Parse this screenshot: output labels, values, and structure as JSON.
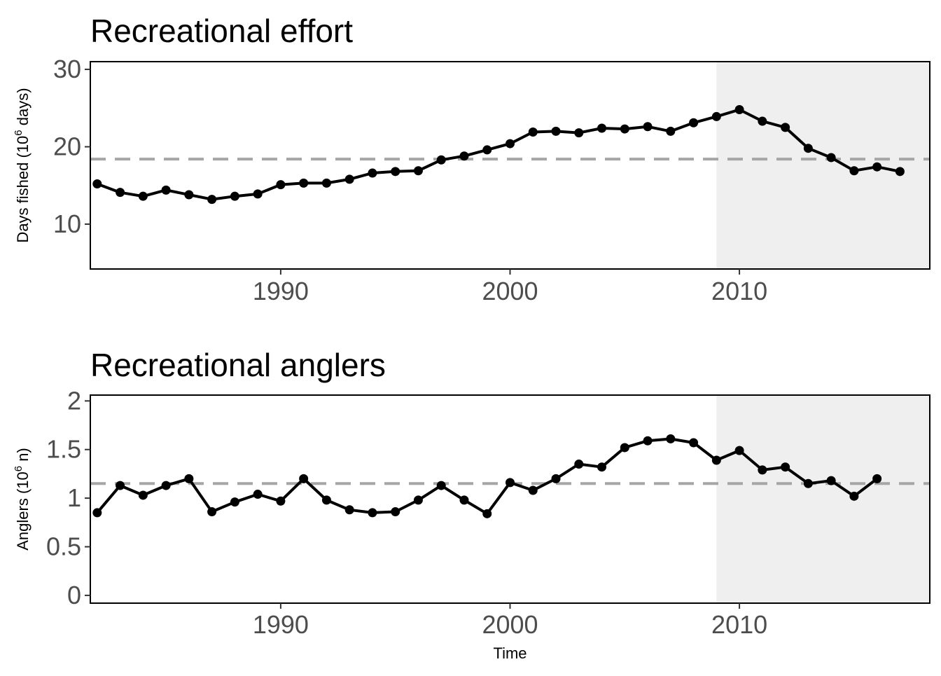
{
  "chart_data": [
    {
      "type": "line",
      "title": "Recreational effort",
      "ylabel": "Days fished (10^6 days)",
      "ylabel_parts": {
        "pre": "Days fished (10",
        "sup": "6",
        "post": " days)"
      },
      "xlabel": "",
      "xlim": [
        1981.7,
        2018.3
      ],
      "ylim": [
        4.2,
        31
      ],
      "x_ticks": [
        1990,
        2000,
        2010
      ],
      "y_ticks": [
        10,
        20,
        30
      ],
      "x_tick_labels": [
        "1990",
        "2000",
        "2010"
      ],
      "y_tick_labels": [
        "10",
        "20",
        "30"
      ],
      "shaded_region": [
        2009,
        2018.3
      ],
      "reference_line": 18.4,
      "grid": false,
      "series": [
        {
          "x": [
            1982,
            1983,
            1984,
            1985,
            1986,
            1987,
            1988,
            1989,
            1990,
            1991,
            1992,
            1993,
            1994,
            1995,
            1996,
            1997,
            1998,
            1999,
            2000,
            2001,
            2002,
            2003,
            2004,
            2005,
            2006,
            2007,
            2008,
            2009,
            2010,
            2011,
            2012,
            2013,
            2014,
            2015,
            2016,
            2017
          ],
          "values": [
            15.2,
            14.1,
            13.6,
            14.4,
            13.8,
            13.2,
            13.6,
            13.9,
            15.1,
            15.3,
            15.3,
            15.8,
            16.6,
            16.8,
            16.9,
            18.3,
            18.8,
            19.6,
            20.4,
            21.9,
            22.0,
            21.8,
            22.4,
            22.3,
            22.6,
            22.0,
            23.1,
            23.9,
            24.8,
            23.3,
            22.5,
            19.8,
            18.6,
            16.9,
            17.4,
            16.8
          ]
        }
      ]
    },
    {
      "type": "line",
      "title": "Recreational anglers",
      "ylabel": "Anglers (10^6 n)",
      "ylabel_parts": {
        "pre": "Anglers (10",
        "sup": "6",
        "post": " n)"
      },
      "xlabel": "Time",
      "xlim": [
        1981.7,
        2018.3
      ],
      "ylim": [
        -0.08,
        2.06
      ],
      "x_ticks": [
        1990,
        2000,
        2010
      ],
      "y_ticks": [
        0,
        0.5,
        1,
        1.5,
        2
      ],
      "x_tick_labels": [
        "1990",
        "2000",
        "2010"
      ],
      "y_tick_labels": [
        "0",
        "0.5",
        "1",
        "1.5",
        "2"
      ],
      "shaded_region": [
        2009,
        2018.3
      ],
      "reference_line": 1.15,
      "grid": false,
      "series": [
        {
          "x": [
            1982,
            1983,
            1984,
            1985,
            1986,
            1987,
            1988,
            1989,
            1990,
            1991,
            1992,
            1993,
            1994,
            1995,
            1996,
            1997,
            1998,
            1999,
            2000,
            2001,
            2002,
            2003,
            2004,
            2005,
            2006,
            2007,
            2008,
            2009,
            2010,
            2011,
            2012,
            2013,
            2014,
            2015,
            2016
          ],
          "values": [
            0.85,
            1.13,
            1.03,
            1.13,
            1.2,
            0.86,
            0.96,
            1.04,
            0.97,
            1.2,
            0.98,
            0.88,
            0.85,
            0.86,
            0.98,
            1.13,
            0.98,
            0.84,
            1.16,
            1.08,
            1.2,
            1.35,
            1.32,
            1.52,
            1.59,
            1.61,
            1.57,
            1.39,
            1.49,
            1.29,
            1.32,
            1.15,
            1.18,
            1.02,
            1.2
          ]
        }
      ]
    }
  ]
}
